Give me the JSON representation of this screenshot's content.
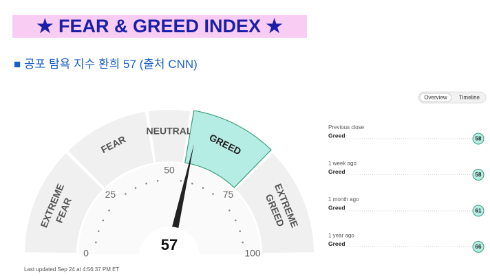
{
  "header": {
    "title": "★ FEAR & GREED INDEX ★",
    "subtitle": "■ 공포 탐욕 지수 환희 57 (출처 CNN)"
  },
  "tabs": [
    "Overview",
    "Timeline"
  ],
  "gauge": {
    "value": 57,
    "min": 0,
    "max": 100,
    "ticks": [
      0,
      25,
      50,
      75,
      100
    ],
    "zones": [
      {
        "label": [
          "EXTREME",
          "FEAR"
        ],
        "from": 0,
        "to": 25
      },
      {
        "label": [
          "FEAR"
        ],
        "from": 25,
        "to": 45
      },
      {
        "label": [
          "NEUTRAL"
        ],
        "from": 45,
        "to": 55
      },
      {
        "label": [
          "GREED"
        ],
        "from": 55,
        "to": 75
      },
      {
        "label": [
          "EXTREME",
          "GREED"
        ],
        "from": 75,
        "to": 100
      }
    ]
  },
  "history": [
    {
      "label": "Previous close",
      "rating": "Greed",
      "value": 58
    },
    {
      "label": "1 week ago",
      "rating": "Greed",
      "value": 58
    },
    {
      "label": "1 month ago",
      "rating": "Greed",
      "value": 61
    },
    {
      "label": "1 year ago",
      "rating": "Greed",
      "value": 66
    }
  ],
  "updated": "Last updated Sep 24 at 4:56:37 PM ET"
}
